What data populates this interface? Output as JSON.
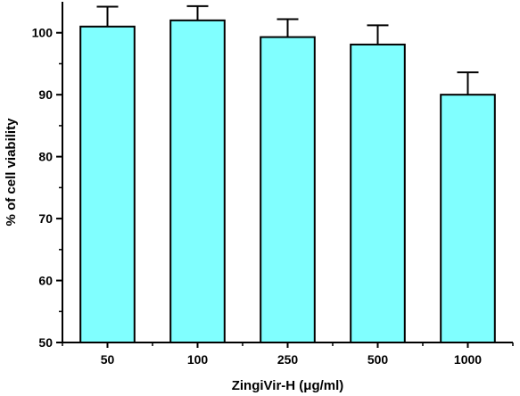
{
  "colors": {
    "bar_fill": "#80ffff",
    "bar_stroke": "#000000",
    "axis": "#000000"
  },
  "chart_data": {
    "type": "bar",
    "title": "",
    "xlabel": "ZingiVir-H (μg/ml)",
    "ylabel": "% of cell viability",
    "categories": [
      "50",
      "100",
      "250",
      "500",
      "1000"
    ],
    "values": [
      101,
      102,
      99.3,
      98.1,
      90
    ],
    "error": [
      3.2,
      2.3,
      2.9,
      3.1,
      3.6
    ],
    "ylim": [
      50,
      105
    ],
    "yticks": [
      50,
      60,
      70,
      80,
      90,
      100
    ],
    "grid": false,
    "legend": "none"
  }
}
